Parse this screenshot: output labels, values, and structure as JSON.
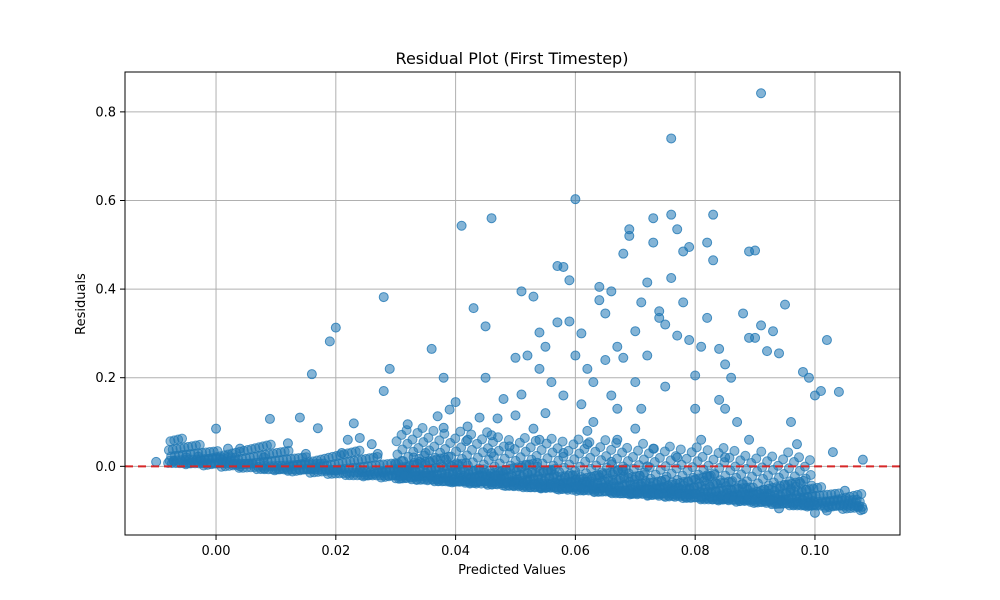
{
  "chart_data": {
    "type": "scatter",
    "title": "Residual Plot (First Timestep)",
    "xlabel": "Predicted Values",
    "ylabel": "Residuals",
    "xlim": [
      -0.0152,
      0.1142
    ],
    "ylim": [
      -0.155,
      0.89
    ],
    "xticks": [
      0.0,
      0.02,
      0.04,
      0.06,
      0.08,
      0.1
    ],
    "xtick_labels": [
      "0.00",
      "0.02",
      "0.04",
      "0.06",
      "0.08",
      "0.10"
    ],
    "yticks": [
      0.0,
      0.2,
      0.4,
      0.6,
      0.8
    ],
    "ytick_labels": [
      "0.0",
      "0.2",
      "0.4",
      "0.6",
      "0.8"
    ],
    "grid": true,
    "point_color": "#1f77b4",
    "point_alpha": 0.55,
    "reference_line": {
      "y": 0.0,
      "color": "#d62728",
      "style": "dashed"
    },
    "points": [
      [
        -0.01,
        0.01
      ],
      [
        -0.007,
        0.012
      ],
      [
        -0.005,
        0.02
      ],
      [
        -0.003,
        0.022
      ],
      [
        -0.002,
        0.008
      ],
      [
        0.0,
        0.085
      ],
      [
        0.001,
        0.015
      ],
      [
        0.002,
        0.04
      ],
      [
        0.004,
        0.04
      ],
      [
        0.003,
        0.005
      ],
      [
        0.008,
        0.02
      ],
      [
        0.009,
        0.107
      ],
      [
        0.012,
        0.052
      ],
      [
        0.014,
        0.11
      ],
      [
        0.015,
        0.028
      ],
      [
        0.016,
        0.208
      ],
      [
        0.017,
        0.086
      ],
      [
        0.019,
        0.282
      ],
      [
        0.02,
        0.313
      ],
      [
        0.021,
        0.03
      ],
      [
        0.022,
        0.06
      ],
      [
        0.023,
        0.097
      ],
      [
        0.024,
        0.064
      ],
      [
        0.026,
        0.05
      ],
      [
        0.027,
        0.028
      ],
      [
        0.028,
        0.17
      ],
      [
        0.028,
        0.382
      ],
      [
        0.029,
        0.22
      ],
      [
        0.031,
        0.012
      ],
      [
        0.032,
        0.095
      ],
      [
        0.033,
        0.02
      ],
      [
        0.035,
        0.03
      ],
      [
        0.036,
        0.265
      ],
      [
        0.037,
        0.113
      ],
      [
        0.038,
        0.087
      ],
      [
        0.038,
        0.2
      ],
      [
        0.039,
        0.128
      ],
      [
        0.04,
        0.145
      ],
      [
        0.041,
        0.543
      ],
      [
        0.042,
        0.09
      ],
      [
        0.043,
        0.357
      ],
      [
        0.044,
        0.11
      ],
      [
        0.045,
        0.2
      ],
      [
        0.045,
        0.316
      ],
      [
        0.046,
        0.07
      ],
      [
        0.046,
        0.56
      ],
      [
        0.047,
        0.108
      ],
      [
        0.048,
        0.152
      ],
      [
        0.049,
        0.045
      ],
      [
        0.05,
        0.245
      ],
      [
        0.05,
        0.115
      ],
      [
        0.051,
        0.395
      ],
      [
        0.051,
        0.162
      ],
      [
        0.052,
        0.25
      ],
      [
        0.053,
        0.383
      ],
      [
        0.053,
        0.085
      ],
      [
        0.054,
        0.302
      ],
      [
        0.054,
        0.22
      ],
      [
        0.055,
        0.12
      ],
      [
        0.055,
        0.27
      ],
      [
        0.056,
        0.19
      ],
      [
        0.057,
        0.452
      ],
      [
        0.057,
        0.325
      ],
      [
        0.058,
        0.45
      ],
      [
        0.058,
        0.16
      ],
      [
        0.059,
        0.42
      ],
      [
        0.059,
        0.327
      ],
      [
        0.06,
        0.603
      ],
      [
        0.06,
        0.25
      ],
      [
        0.061,
        0.3
      ],
      [
        0.061,
        0.14
      ],
      [
        0.062,
        0.22
      ],
      [
        0.062,
        0.08
      ],
      [
        0.063,
        0.19
      ],
      [
        0.063,
        0.1
      ],
      [
        0.064,
        0.405
      ],
      [
        0.064,
        0.375
      ],
      [
        0.065,
        0.345
      ],
      [
        0.065,
        0.24
      ],
      [
        0.066,
        0.16
      ],
      [
        0.066,
        0.395
      ],
      [
        0.067,
        0.27
      ],
      [
        0.067,
        0.13
      ],
      [
        0.068,
        0.245
      ],
      [
        0.068,
        0.48
      ],
      [
        0.069,
        0.535
      ],
      [
        0.069,
        0.52
      ],
      [
        0.07,
        0.305
      ],
      [
        0.07,
        0.19
      ],
      [
        0.071,
        0.37
      ],
      [
        0.071,
        0.13
      ],
      [
        0.072,
        0.415
      ],
      [
        0.072,
        0.25
      ],
      [
        0.073,
        0.56
      ],
      [
        0.073,
        0.505
      ],
      [
        0.074,
        0.35
      ],
      [
        0.074,
        0.335
      ],
      [
        0.075,
        0.32
      ],
      [
        0.075,
        0.18
      ],
      [
        0.076,
        0.74
      ],
      [
        0.076,
        0.568
      ],
      [
        0.076,
        0.425
      ],
      [
        0.077,
        0.535
      ],
      [
        0.077,
        0.295
      ],
      [
        0.078,
        0.485
      ],
      [
        0.078,
        0.37
      ],
      [
        0.079,
        0.285
      ],
      [
        0.079,
        0.495
      ],
      [
        0.08,
        0.205
      ],
      [
        0.08,
        0.13
      ],
      [
        0.081,
        0.27
      ],
      [
        0.082,
        0.505
      ],
      [
        0.082,
        0.335
      ],
      [
        0.083,
        0.465
      ],
      [
        0.083,
        0.568
      ],
      [
        0.084,
        0.265
      ],
      [
        0.084,
        0.15
      ],
      [
        0.085,
        0.23
      ],
      [
        0.085,
        0.13
      ],
      [
        0.086,
        0.2
      ],
      [
        0.087,
        0.1
      ],
      [
        0.088,
        0.345
      ],
      [
        0.089,
        0.485
      ],
      [
        0.089,
        0.29
      ],
      [
        0.09,
        0.487
      ],
      [
        0.09,
        0.29
      ],
      [
        0.091,
        0.842
      ],
      [
        0.091,
        0.318
      ],
      [
        0.092,
        0.26
      ],
      [
        0.093,
        0.305
      ],
      [
        0.094,
        0.255
      ],
      [
        0.095,
        0.365
      ],
      [
        0.096,
        0.1
      ],
      [
        0.097,
        0.05
      ],
      [
        0.098,
        0.213
      ],
      [
        0.099,
        0.2
      ],
      [
        0.1,
        0.16
      ],
      [
        0.101,
        0.17
      ],
      [
        0.102,
        0.285
      ],
      [
        0.103,
        0.032
      ],
      [
        0.104,
        0.168
      ],
      [
        0.105,
        -0.055
      ],
      [
        0.107,
        -0.09
      ],
      [
        0.108,
        0.015
      ],
      [
        0.108,
        -0.097
      ],
      [
        0.102,
        -0.1
      ],
      [
        0.1,
        -0.105
      ],
      [
        0.098,
        -0.075
      ],
      [
        0.096,
        -0.05
      ],
      [
        0.094,
        -0.095
      ],
      [
        0.092,
        -0.07
      ],
      [
        0.088,
        -0.04
      ],
      [
        0.086,
        -0.065
      ],
      [
        0.082,
        -0.02
      ],
      [
        0.079,
        -0.05
      ],
      [
        0.075,
        -0.03
      ],
      [
        0.071,
        -0.045
      ],
      [
        0.068,
        -0.01
      ],
      [
        0.064,
        -0.025
      ],
      [
        0.06,
        -0.02
      ],
      [
        0.056,
        -0.01
      ],
      [
        0.052,
        -0.03
      ],
      [
        0.048,
        -0.015
      ],
      [
        0.044,
        -0.02
      ],
      [
        0.04,
        -0.005
      ],
      [
        0.036,
        -0.02
      ],
      [
        0.032,
        -0.01
      ],
      [
        0.028,
        -0.015
      ],
      [
        0.024,
        -0.008
      ],
      [
        0.02,
        -0.01
      ],
      [
        0.016,
        -0.005
      ],
      [
        0.012,
        -0.01
      ],
      [
        0.008,
        -0.005
      ],
      [
        0.004,
        0.0
      ],
      [
        0.067,
        0.06
      ],
      [
        0.07,
        0.085
      ],
      [
        0.073,
        0.04
      ],
      [
        0.077,
        0.02
      ],
      [
        0.081,
        0.06
      ],
      [
        0.085,
        0.02
      ],
      [
        0.089,
        0.06
      ],
      [
        0.062,
        0.05
      ],
      [
        0.058,
        0.03
      ],
      [
        0.054,
        0.06
      ],
      [
        0.046,
        0.03
      ],
      [
        0.042,
        0.06
      ],
      [
        0.034,
        0.01
      ],
      [
        0.03,
        0.005
      ],
      [
        0.066,
        0.01
      ],
      [
        0.072,
        0.0
      ]
    ]
  }
}
